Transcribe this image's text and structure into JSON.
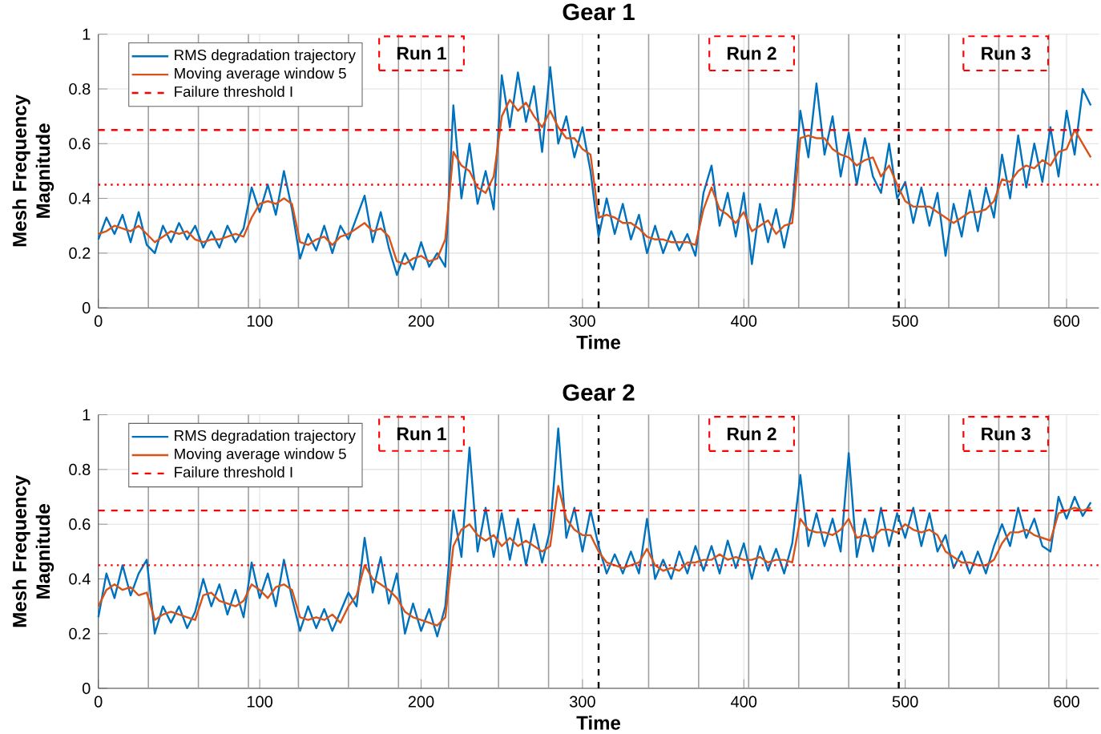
{
  "chart_data": [
    {
      "type": "line",
      "title": "Gear 1",
      "xlabel": "Time",
      "ylabel": "Mesh Frequency Magnitude",
      "x": [
        0,
        5,
        10,
        15,
        20,
        25,
        30,
        35,
        40,
        45,
        50,
        55,
        60,
        65,
        70,
        75,
        80,
        85,
        90,
        95,
        100,
        105,
        110,
        115,
        120,
        125,
        130,
        135,
        140,
        145,
        150,
        155,
        160,
        165,
        170,
        175,
        180,
        185,
        190,
        195,
        200,
        205,
        210,
        215,
        220,
        225,
        230,
        235,
        240,
        245,
        250,
        255,
        260,
        265,
        270,
        275,
        280,
        285,
        290,
        295,
        300,
        305,
        310,
        315,
        320,
        325,
        330,
        335,
        340,
        345,
        350,
        355,
        360,
        365,
        370,
        375,
        380,
        385,
        390,
        395,
        400,
        405,
        410,
        415,
        420,
        425,
        430,
        435,
        440,
        445,
        450,
        455,
        460,
        465,
        470,
        475,
        480,
        485,
        490,
        495,
        500,
        505,
        510,
        515,
        520,
        525,
        530,
        535,
        540,
        545,
        550,
        555,
        560,
        565,
        570,
        575,
        580,
        585,
        590,
        595,
        600,
        605,
        610,
        615
      ],
      "series": [
        {
          "name": "RMS degradation trajectory",
          "color": "#0072bd",
          "values": [
            0.25,
            0.33,
            0.27,
            0.34,
            0.24,
            0.35,
            0.23,
            0.2,
            0.3,
            0.24,
            0.31,
            0.25,
            0.3,
            0.22,
            0.28,
            0.22,
            0.3,
            0.24,
            0.29,
            0.44,
            0.35,
            0.45,
            0.34,
            0.5,
            0.36,
            0.18,
            0.27,
            0.21,
            0.3,
            0.2,
            0.3,
            0.25,
            0.33,
            0.41,
            0.24,
            0.35,
            0.22,
            0.12,
            0.2,
            0.14,
            0.24,
            0.15,
            0.2,
            0.15,
            0.74,
            0.4,
            0.6,
            0.38,
            0.5,
            0.36,
            0.85,
            0.66,
            0.86,
            0.68,
            0.81,
            0.57,
            0.88,
            0.6,
            0.7,
            0.55,
            0.66,
            0.5,
            0.26,
            0.4,
            0.27,
            0.38,
            0.25,
            0.34,
            0.2,
            0.3,
            0.2,
            0.28,
            0.21,
            0.27,
            0.19,
            0.42,
            0.52,
            0.3,
            0.42,
            0.26,
            0.42,
            0.16,
            0.38,
            0.24,
            0.36,
            0.22,
            0.36,
            0.72,
            0.55,
            0.82,
            0.56,
            0.7,
            0.48,
            0.64,
            0.45,
            0.62,
            0.48,
            0.42,
            0.6,
            0.4,
            0.46,
            0.31,
            0.44,
            0.3,
            0.42,
            0.19,
            0.38,
            0.26,
            0.43,
            0.28,
            0.44,
            0.33,
            0.56,
            0.4,
            0.63,
            0.44,
            0.6,
            0.46,
            0.66,
            0.48,
            0.72,
            0.56,
            0.8,
            0.74
          ]
        },
        {
          "name": "Moving average window 5",
          "color": "#d95319",
          "values": [
            0.27,
            0.28,
            0.3,
            0.29,
            0.28,
            0.3,
            0.27,
            0.24,
            0.26,
            0.28,
            0.27,
            0.28,
            0.25,
            0.24,
            0.25,
            0.25,
            0.26,
            0.27,
            0.26,
            0.33,
            0.38,
            0.39,
            0.38,
            0.4,
            0.38,
            0.24,
            0.23,
            0.25,
            0.26,
            0.23,
            0.26,
            0.27,
            0.29,
            0.31,
            0.28,
            0.29,
            0.26,
            0.17,
            0.16,
            0.18,
            0.19,
            0.17,
            0.18,
            0.25,
            0.57,
            0.52,
            0.5,
            0.44,
            0.42,
            0.48,
            0.7,
            0.76,
            0.72,
            0.75,
            0.7,
            0.66,
            0.72,
            0.66,
            0.62,
            0.62,
            0.58,
            0.56,
            0.33,
            0.34,
            0.33,
            0.31,
            0.31,
            0.29,
            0.26,
            0.25,
            0.25,
            0.24,
            0.24,
            0.24,
            0.23,
            0.36,
            0.44,
            0.36,
            0.34,
            0.31,
            0.35,
            0.28,
            0.3,
            0.32,
            0.27,
            0.3,
            0.31,
            0.62,
            0.63,
            0.62,
            0.62,
            0.58,
            0.56,
            0.55,
            0.52,
            0.54,
            0.55,
            0.48,
            0.52,
            0.45,
            0.39,
            0.37,
            0.37,
            0.37,
            0.35,
            0.33,
            0.31,
            0.33,
            0.35,
            0.35,
            0.36,
            0.39,
            0.47,
            0.46,
            0.5,
            0.52,
            0.51,
            0.54,
            0.52,
            0.57,
            0.58,
            0.65,
            0.6,
            0.55
          ]
        }
      ],
      "xlim": [
        0,
        620
      ],
      "ylim": [
        0,
        1
      ],
      "xticks": [
        0,
        100,
        200,
        300,
        400,
        500,
        600
      ],
      "yticks": [
        0,
        0.2,
        0.4,
        0.6,
        0.8,
        1
      ],
      "grid": true,
      "legend": "top left",
      "ref_lines": [
        {
          "axis": "x",
          "value": 31,
          "color": "#a0a0a0"
        },
        {
          "axis": "x",
          "value": 62,
          "color": "#a0a0a0"
        },
        {
          "axis": "x",
          "value": 93,
          "color": "#a0a0a0"
        },
        {
          "axis": "x",
          "value": 124,
          "color": "#a0a0a0"
        },
        {
          "axis": "x",
          "value": 155,
          "color": "#a0a0a0"
        },
        {
          "axis": "x",
          "value": 186,
          "color": "#a0a0a0"
        },
        {
          "axis": "x",
          "value": 217,
          "color": "#a0a0a0"
        },
        {
          "axis": "x",
          "value": 248,
          "color": "#a0a0a0"
        },
        {
          "axis": "x",
          "value": 279,
          "color": "#a0a0a0"
        },
        {
          "axis": "x",
          "value": 341,
          "color": "#a0a0a0"
        },
        {
          "axis": "x",
          "value": 372,
          "color": "#a0a0a0"
        },
        {
          "axis": "x",
          "value": 403,
          "color": "#a0a0a0"
        },
        {
          "axis": "x",
          "value": 434,
          "color": "#a0a0a0"
        },
        {
          "axis": "x",
          "value": 465,
          "color": "#a0a0a0"
        },
        {
          "axis": "x",
          "value": 527,
          "color": "#a0a0a0"
        },
        {
          "axis": "x",
          "value": 558,
          "color": "#a0a0a0"
        },
        {
          "axis": "x",
          "value": 589,
          "color": "#a0a0a0"
        },
        {
          "axis": "x",
          "value": 310,
          "color": "#000000",
          "line_style": "dashed"
        },
        {
          "axis": "x",
          "value": 496,
          "color": "#000000",
          "line_style": "dashed"
        },
        {
          "axis": "y",
          "value": 0.65,
          "color": "#ff0000",
          "line_style": "dashed",
          "label": "Failure threshold I"
        },
        {
          "axis": "y",
          "value": 0.45,
          "color": "#ff0000",
          "line_style": "dotted"
        }
      ],
      "annotations": [
        "Run 1",
        "Run 2",
        "Run 3"
      ]
    },
    {
      "type": "line",
      "title": "Gear 2",
      "xlabel": "Time",
      "ylabel": "Mesh Frequency Magnitude",
      "x": [
        0,
        5,
        10,
        15,
        20,
        25,
        30,
        35,
        40,
        45,
        50,
        55,
        60,
        65,
        70,
        75,
        80,
        85,
        90,
        95,
        100,
        105,
        110,
        115,
        120,
        125,
        130,
        135,
        140,
        145,
        150,
        155,
        160,
        165,
        170,
        175,
        180,
        185,
        190,
        195,
        200,
        205,
        210,
        215,
        220,
        225,
        230,
        235,
        240,
        245,
        250,
        255,
        260,
        265,
        270,
        275,
        280,
        285,
        290,
        295,
        300,
        305,
        310,
        315,
        320,
        325,
        330,
        335,
        340,
        345,
        350,
        355,
        360,
        365,
        370,
        375,
        380,
        385,
        390,
        395,
        400,
        405,
        410,
        415,
        420,
        425,
        430,
        435,
        440,
        445,
        450,
        455,
        460,
        465,
        470,
        475,
        480,
        485,
        490,
        495,
        500,
        505,
        510,
        515,
        520,
        525,
        530,
        535,
        540,
        545,
        550,
        555,
        560,
        565,
        570,
        575,
        580,
        585,
        590,
        595,
        600,
        605,
        610,
        615
      ],
      "series": [
        {
          "name": "RMS degradation trajectory",
          "color": "#0072bd",
          "values": [
            0.26,
            0.42,
            0.33,
            0.45,
            0.34,
            0.42,
            0.47,
            0.2,
            0.3,
            0.24,
            0.3,
            0.22,
            0.28,
            0.4,
            0.3,
            0.38,
            0.27,
            0.36,
            0.26,
            0.46,
            0.33,
            0.42,
            0.3,
            0.47,
            0.33,
            0.21,
            0.3,
            0.22,
            0.29,
            0.21,
            0.28,
            0.35,
            0.3,
            0.55,
            0.35,
            0.48,
            0.31,
            0.42,
            0.2,
            0.31,
            0.21,
            0.29,
            0.19,
            0.3,
            0.65,
            0.48,
            0.88,
            0.5,
            0.66,
            0.48,
            0.64,
            0.47,
            0.62,
            0.45,
            0.6,
            0.46,
            0.58,
            0.95,
            0.55,
            0.66,
            0.5,
            0.65,
            0.52,
            0.42,
            0.49,
            0.42,
            0.5,
            0.42,
            0.62,
            0.4,
            0.47,
            0.4,
            0.5,
            0.42,
            0.52,
            0.43,
            0.52,
            0.42,
            0.54,
            0.44,
            0.53,
            0.4,
            0.52,
            0.43,
            0.51,
            0.42,
            0.53,
            0.78,
            0.52,
            0.64,
            0.52,
            0.62,
            0.5,
            0.86,
            0.48,
            0.62,
            0.5,
            0.66,
            0.52,
            0.64,
            0.55,
            0.66,
            0.52,
            0.64,
            0.5,
            0.56,
            0.44,
            0.5,
            0.42,
            0.5,
            0.42,
            0.52,
            0.6,
            0.52,
            0.66,
            0.55,
            0.62,
            0.52,
            0.5,
            0.7,
            0.62,
            0.7,
            0.63,
            0.68
          ]
        },
        {
          "name": "Moving average window 5",
          "color": "#d95319",
          "values": [
            0.3,
            0.36,
            0.38,
            0.36,
            0.37,
            0.34,
            0.35,
            0.25,
            0.27,
            0.28,
            0.27,
            0.26,
            0.25,
            0.34,
            0.35,
            0.32,
            0.31,
            0.3,
            0.32,
            0.38,
            0.36,
            0.33,
            0.37,
            0.38,
            0.36,
            0.26,
            0.25,
            0.26,
            0.25,
            0.27,
            0.24,
            0.3,
            0.34,
            0.45,
            0.4,
            0.38,
            0.36,
            0.33,
            0.28,
            0.26,
            0.25,
            0.24,
            0.23,
            0.26,
            0.52,
            0.58,
            0.6,
            0.56,
            0.54,
            0.56,
            0.52,
            0.55,
            0.52,
            0.54,
            0.52,
            0.5,
            0.52,
            0.74,
            0.62,
            0.58,
            0.56,
            0.56,
            0.5,
            0.46,
            0.45,
            0.44,
            0.45,
            0.46,
            0.51,
            0.45,
            0.43,
            0.44,
            0.43,
            0.46,
            0.46,
            0.47,
            0.47,
            0.49,
            0.47,
            0.48,
            0.47,
            0.47,
            0.48,
            0.46,
            0.47,
            0.47,
            0.46,
            0.62,
            0.58,
            0.57,
            0.57,
            0.56,
            0.58,
            0.62,
            0.55,
            0.56,
            0.55,
            0.58,
            0.58,
            0.57,
            0.6,
            0.58,
            0.57,
            0.58,
            0.56,
            0.5,
            0.48,
            0.46,
            0.46,
            0.45,
            0.45,
            0.47,
            0.53,
            0.57,
            0.57,
            0.58,
            0.56,
            0.55,
            0.54,
            0.64,
            0.65,
            0.66,
            0.65,
            0.66
          ]
        }
      ],
      "xlim": [
        0,
        620
      ],
      "ylim": [
        0,
        1
      ],
      "xticks": [
        0,
        100,
        200,
        300,
        400,
        500,
        600
      ],
      "yticks": [
        0,
        0.2,
        0.4,
        0.6,
        0.8,
        1
      ],
      "grid": true,
      "legend": "top left",
      "ref_lines": [
        {
          "axis": "x",
          "value": 31,
          "color": "#a0a0a0"
        },
        {
          "axis": "x",
          "value": 62,
          "color": "#a0a0a0"
        },
        {
          "axis": "x",
          "value": 93,
          "color": "#a0a0a0"
        },
        {
          "axis": "x",
          "value": 124,
          "color": "#a0a0a0"
        },
        {
          "axis": "x",
          "value": 155,
          "color": "#a0a0a0"
        },
        {
          "axis": "x",
          "value": 186,
          "color": "#a0a0a0"
        },
        {
          "axis": "x",
          "value": 217,
          "color": "#a0a0a0"
        },
        {
          "axis": "x",
          "value": 248,
          "color": "#a0a0a0"
        },
        {
          "axis": "x",
          "value": 279,
          "color": "#a0a0a0"
        },
        {
          "axis": "x",
          "value": 341,
          "color": "#a0a0a0"
        },
        {
          "axis": "x",
          "value": 372,
          "color": "#a0a0a0"
        },
        {
          "axis": "x",
          "value": 403,
          "color": "#a0a0a0"
        },
        {
          "axis": "x",
          "value": 434,
          "color": "#a0a0a0"
        },
        {
          "axis": "x",
          "value": 465,
          "color": "#a0a0a0"
        },
        {
          "axis": "x",
          "value": 527,
          "color": "#a0a0a0"
        },
        {
          "axis": "x",
          "value": 558,
          "color": "#a0a0a0"
        },
        {
          "axis": "x",
          "value": 589,
          "color": "#a0a0a0"
        },
        {
          "axis": "x",
          "value": 310,
          "color": "#000000",
          "line_style": "dashed"
        },
        {
          "axis": "x",
          "value": 496,
          "color": "#000000",
          "line_style": "dashed"
        },
        {
          "axis": "y",
          "value": 0.65,
          "color": "#ff0000",
          "line_style": "dashed",
          "label": "Failure threshold I"
        },
        {
          "axis": "y",
          "value": 0.45,
          "color": "#ff0000",
          "line_style": "dotted"
        }
      ],
      "annotations": [
        "Run 1",
        "Run 2",
        "Run 3"
      ]
    }
  ]
}
